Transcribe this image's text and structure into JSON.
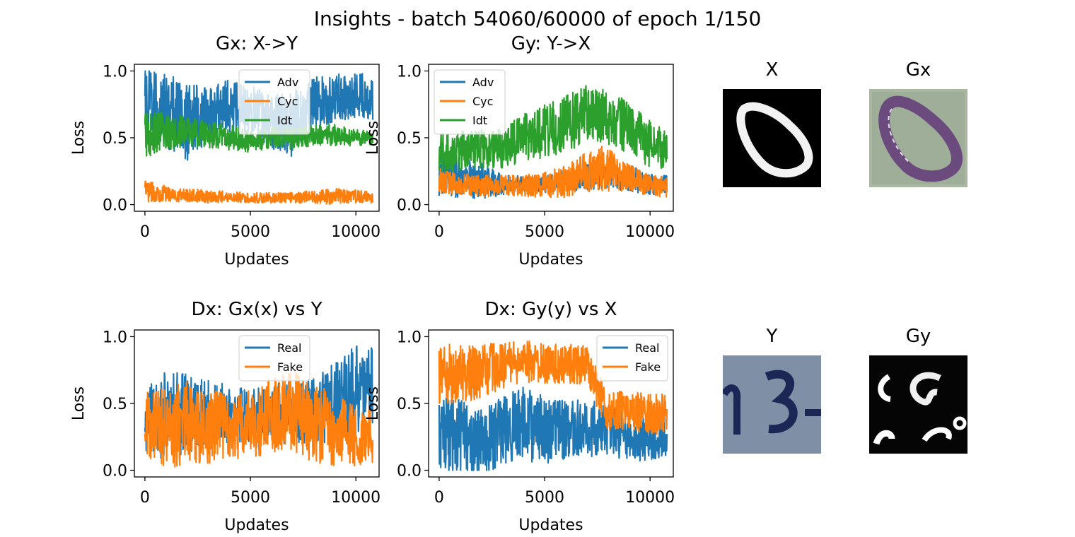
{
  "figure": {
    "suptitle": "Insights - batch 54060/60000 of epoch 1/150"
  },
  "colors": {
    "blue": "#1f77b4",
    "orange": "#ff7f0e",
    "green": "#2ca02c"
  },
  "images": [
    {
      "title": "X",
      "icon": "digit-zero-white-on-black"
    },
    {
      "title": "Gx",
      "icon": "digit-zero-purple-on-green"
    },
    {
      "title": "Y",
      "icon": "house-number-3-dark-on-grey"
    },
    {
      "title": "Gy",
      "icon": "blurry-white-strokes-on-black"
    }
  ],
  "chart_data": [
    {
      "type": "line",
      "title": "Gx: X->Y",
      "xlabel": "Updates",
      "ylabel": "Loss",
      "xlim": [
        0,
        10800
      ],
      "ylim": [
        0,
        1.0
      ],
      "xticks": [
        0,
        5000,
        10000
      ],
      "yticks": [
        0.0,
        0.5,
        1.0
      ],
      "ytick_labels": [
        "0.0",
        "0.5",
        "1.0"
      ],
      "xtick_labels": [
        "0",
        "5000",
        "10000"
      ],
      "legend": "top-center",
      "series": [
        {
          "name": "Adv",
          "color": "#1f77b4",
          "x": [
            0,
            1000,
            2000,
            3000,
            4000,
            5000,
            6000,
            7000,
            8000,
            9000,
            10000,
            10800
          ],
          "mid": [
            0.72,
            0.7,
            0.62,
            0.68,
            0.74,
            0.72,
            0.62,
            0.6,
            0.75,
            0.8,
            0.82,
            0.8
          ],
          "amp": [
            0.3,
            0.28,
            0.3,
            0.22,
            0.2,
            0.18,
            0.2,
            0.25,
            0.2,
            0.18,
            0.17,
            0.17
          ]
        },
        {
          "name": "Cyc",
          "color": "#ff7f0e",
          "x": [
            0,
            1000,
            2000,
            3000,
            4000,
            5000,
            6000,
            7000,
            8000,
            9000,
            10000,
            10800
          ],
          "mid": [
            0.1,
            0.08,
            0.07,
            0.06,
            0.06,
            0.05,
            0.05,
            0.05,
            0.06,
            0.06,
            0.06,
            0.05
          ],
          "amp": [
            0.08,
            0.06,
            0.05,
            0.05,
            0.04,
            0.04,
            0.04,
            0.04,
            0.05,
            0.06,
            0.05,
            0.04
          ]
        },
        {
          "name": "Idt",
          "color": "#2ca02c",
          "x": [
            0,
            1000,
            2000,
            3000,
            4000,
            5000,
            6000,
            7000,
            8000,
            9000,
            10000,
            10800
          ],
          "mid": [
            0.52,
            0.55,
            0.55,
            0.52,
            0.5,
            0.47,
            0.5,
            0.5,
            0.52,
            0.52,
            0.5,
            0.5
          ],
          "amp": [
            0.18,
            0.14,
            0.12,
            0.1,
            0.1,
            0.08,
            0.08,
            0.09,
            0.08,
            0.08,
            0.06,
            0.05
          ]
        }
      ]
    },
    {
      "type": "line",
      "title": "Gy: Y->X",
      "xlabel": "Updates",
      "ylabel": "Loss",
      "xlim": [
        0,
        10800
      ],
      "ylim": [
        0,
        1.0
      ],
      "xticks": [
        0,
        5000,
        10000
      ],
      "yticks": [
        0.0,
        0.5,
        1.0
      ],
      "ytick_labels": [
        "0.0",
        "0.5",
        "1.0"
      ],
      "xtick_labels": [
        "0",
        "5000",
        "10000"
      ],
      "legend": "top-left",
      "series": [
        {
          "name": "Adv",
          "color": "#1f77b4",
          "x": [
            0,
            1000,
            2000,
            3000,
            4000,
            5000,
            6000,
            7000,
            8000,
            9000,
            10000,
            10800
          ],
          "mid": [
            0.25,
            0.2,
            0.18,
            0.15,
            0.15,
            0.15,
            0.18,
            0.2,
            0.22,
            0.2,
            0.15,
            0.15
          ],
          "amp": [
            0.2,
            0.15,
            0.14,
            0.08,
            0.06,
            0.06,
            0.08,
            0.1,
            0.1,
            0.1,
            0.08,
            0.07
          ]
        },
        {
          "name": "Cyc",
          "color": "#ff7f0e",
          "x": [
            0,
            1000,
            2000,
            3000,
            4000,
            5000,
            6000,
            7000,
            8000,
            9000,
            10000,
            10800
          ],
          "mid": [
            0.18,
            0.15,
            0.14,
            0.14,
            0.14,
            0.15,
            0.17,
            0.25,
            0.27,
            0.2,
            0.14,
            0.13
          ],
          "amp": [
            0.1,
            0.08,
            0.08,
            0.08,
            0.08,
            0.1,
            0.12,
            0.16,
            0.18,
            0.1,
            0.08,
            0.08
          ]
        },
        {
          "name": "Idt",
          "color": "#2ca02c",
          "x": [
            0,
            1000,
            2000,
            3000,
            4000,
            5000,
            6000,
            7000,
            8000,
            9000,
            10000,
            10800
          ],
          "mid": [
            0.38,
            0.4,
            0.42,
            0.42,
            0.5,
            0.55,
            0.6,
            0.68,
            0.65,
            0.58,
            0.45,
            0.4
          ],
          "amp": [
            0.15,
            0.15,
            0.15,
            0.15,
            0.18,
            0.2,
            0.22,
            0.22,
            0.2,
            0.2,
            0.18,
            0.15
          ]
        }
      ]
    },
    {
      "type": "line",
      "title": "Dx: Gx(x) vs Y",
      "xlabel": "Updates",
      "ylabel": "Loss",
      "xlim": [
        0,
        10800
      ],
      "ylim": [
        0,
        1.0
      ],
      "xticks": [
        0,
        5000,
        10000
      ],
      "yticks": [
        0.0,
        0.5,
        1.0
      ],
      "ytick_labels": [
        "0.0",
        "0.5",
        "1.0"
      ],
      "xtick_labels": [
        "0",
        "5000",
        "10000"
      ],
      "legend": "top-center",
      "series": [
        {
          "name": "Real",
          "color": "#1f77b4",
          "x": [
            0,
            1000,
            2000,
            3000,
            4000,
            5000,
            6000,
            7000,
            8000,
            9000,
            10000,
            10800
          ],
          "mid": [
            0.35,
            0.4,
            0.42,
            0.42,
            0.42,
            0.4,
            0.42,
            0.45,
            0.45,
            0.5,
            0.6,
            0.62
          ],
          "amp": [
            0.25,
            0.35,
            0.3,
            0.25,
            0.22,
            0.2,
            0.22,
            0.25,
            0.25,
            0.3,
            0.35,
            0.3
          ]
        },
        {
          "name": "Fake",
          "color": "#ff7f0e",
          "x": [
            0,
            1000,
            2000,
            3000,
            4000,
            5000,
            6000,
            7000,
            8000,
            9000,
            10000,
            10800
          ],
          "mid": [
            0.3,
            0.32,
            0.35,
            0.33,
            0.33,
            0.35,
            0.4,
            0.45,
            0.35,
            0.3,
            0.25,
            0.25
          ],
          "amp": [
            0.28,
            0.3,
            0.32,
            0.28,
            0.25,
            0.25,
            0.3,
            0.3,
            0.3,
            0.28,
            0.22,
            0.2
          ]
        }
      ]
    },
    {
      "type": "line",
      "title": "Dx: Gy(y) vs X",
      "xlabel": "Updates",
      "ylabel": "Loss",
      "xlim": [
        0,
        10800
      ],
      "ylim": [
        0,
        1.0
      ],
      "xticks": [
        0,
        5000,
        10000
      ],
      "yticks": [
        0.0,
        0.5,
        1.0
      ],
      "ytick_labels": [
        "0.0",
        "0.5",
        "1.0"
      ],
      "xtick_labels": [
        "0",
        "5000",
        "10000"
      ],
      "legend": "top-right",
      "series": [
        {
          "name": "Real",
          "color": "#1f77b4",
          "x": [
            0,
            1000,
            2000,
            3000,
            4000,
            5000,
            6000,
            7000,
            8000,
            9000,
            10000,
            10800
          ],
          "mid": [
            0.3,
            0.25,
            0.2,
            0.3,
            0.35,
            0.3,
            0.3,
            0.32,
            0.3,
            0.25,
            0.22,
            0.25
          ],
          "amp": [
            0.3,
            0.28,
            0.25,
            0.25,
            0.28,
            0.25,
            0.22,
            0.22,
            0.2,
            0.18,
            0.15,
            0.15
          ]
        },
        {
          "name": "Fake",
          "color": "#ff7f0e",
          "x": [
            0,
            1000,
            2000,
            3000,
            4000,
            5000,
            6000,
            7000,
            8000,
            9000,
            10000,
            10800
          ],
          "mid": [
            0.72,
            0.72,
            0.74,
            0.78,
            0.82,
            0.8,
            0.8,
            0.78,
            0.45,
            0.45,
            0.42,
            0.42
          ],
          "amp": [
            0.25,
            0.22,
            0.2,
            0.18,
            0.16,
            0.15,
            0.15,
            0.15,
            0.15,
            0.15,
            0.15,
            0.15
          ]
        }
      ]
    }
  ]
}
